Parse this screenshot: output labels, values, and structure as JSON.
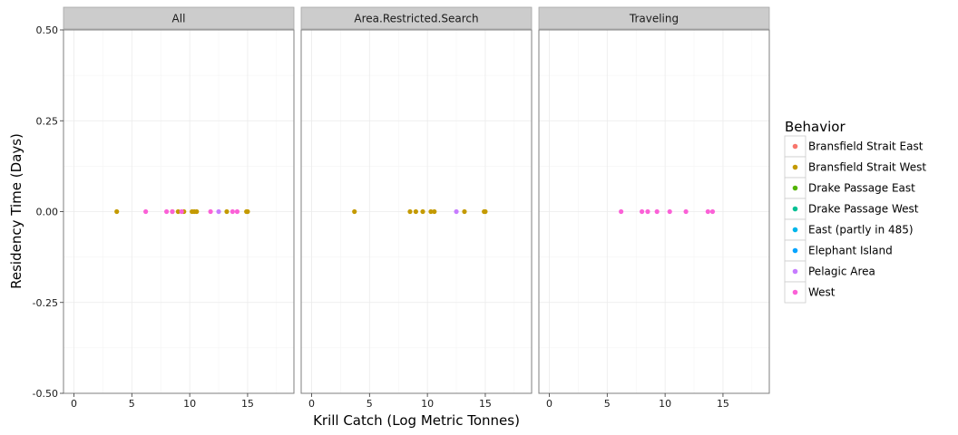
{
  "chart_data": {
    "type": "scatter",
    "xlabel": "Krill Catch (Log Metric Tonnes)",
    "ylabel": "Residency Time (Days)",
    "xlim": [
      -0.9,
      19
    ],
    "ylim": [
      -0.5,
      0.5
    ],
    "x_ticks": [
      0,
      5,
      10,
      15
    ],
    "x_tick_labels": [
      "0",
      "5",
      "10",
      "15"
    ],
    "y_ticks": [
      0.5,
      0.25,
      0.0,
      -0.25,
      -0.5
    ],
    "y_tick_labels": [
      "0.50",
      "0.25",
      "0.00",
      "-0.25",
      "-0.50"
    ],
    "grid": true,
    "legend": {
      "title": "Behavior",
      "position": "right",
      "entries": [
        {
          "label": "Bransfield Strait East",
          "color": "#F8766D"
        },
        {
          "label": "Bransfield Strait West",
          "color": "#C49A00"
        },
        {
          "label": "Drake Passage East",
          "color": "#53B400"
        },
        {
          "label": "Drake Passage West",
          "color": "#00C094"
        },
        {
          "label": "East (partly in 485)",
          "color": "#00B6EB"
        },
        {
          "label": "Elephant Island",
          "color": "#06A4FF"
        },
        {
          "label": "Pelagic Area",
          "color": "#C77CFF"
        },
        {
          "label": "West",
          "color": "#FB61D7"
        }
      ]
    },
    "panels": [
      {
        "title": "All",
        "series": [
          {
            "name": "Bransfield Strait West",
            "x": [
              3.7,
              8.5,
              9.0,
              9.5,
              10.2,
              10.4,
              10.6,
              13.2,
              14.9,
              15.0
            ],
            "y": [
              0,
              0,
              0,
              0,
              0,
              0,
              0,
              0,
              0,
              0
            ]
          },
          {
            "name": "West",
            "x": [
              6.2,
              8.0,
              8.5,
              9.3,
              11.8,
              13.7,
              14.1
            ],
            "y": [
              0,
              0,
              0,
              0,
              0,
              0,
              0
            ]
          },
          {
            "name": "Pelagic Area",
            "x": [
              12.5
            ],
            "y": [
              0
            ]
          }
        ]
      },
      {
        "title": "Area.Restricted.Search",
        "series": [
          {
            "name": "Bransfield Strait West",
            "x": [
              3.7,
              8.5,
              9.0,
              9.6,
              10.3,
              10.6,
              13.2,
              14.9,
              15.0
            ],
            "y": [
              0,
              0,
              0,
              0,
              0,
              0,
              0,
              0,
              0
            ]
          },
          {
            "name": "Pelagic Area",
            "x": [
              12.5
            ],
            "y": [
              0
            ]
          }
        ]
      },
      {
        "title": "Traveling",
        "series": [
          {
            "name": "West",
            "x": [
              6.2,
              8.0,
              8.5,
              9.3,
              10.4,
              11.8,
              13.7,
              14.1
            ],
            "y": [
              0,
              0,
              0,
              0,
              0,
              0,
              0,
              0
            ]
          }
        ]
      }
    ]
  }
}
